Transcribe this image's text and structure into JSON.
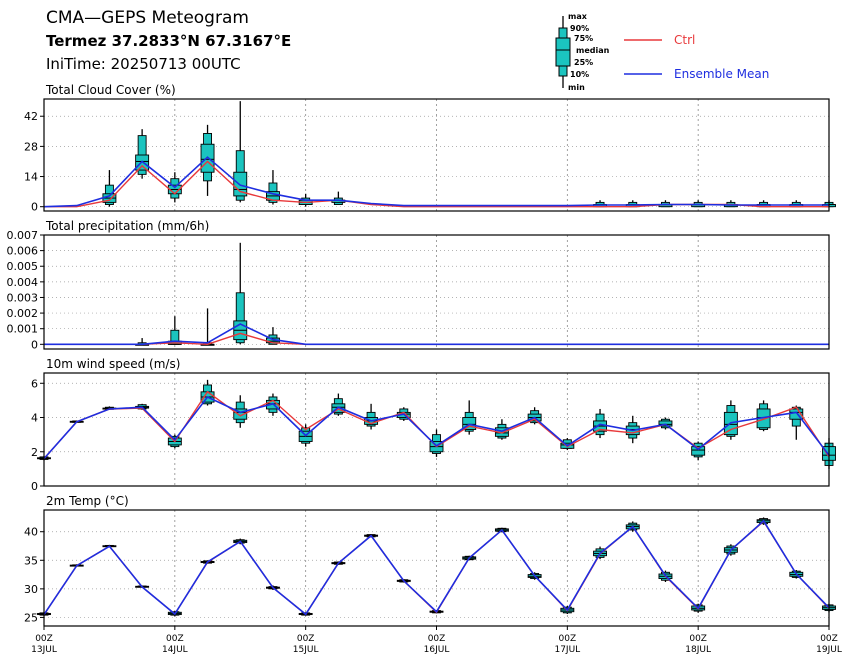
{
  "header": {
    "title": "CMA—GEPS Meteogram",
    "location": "Termez 37.2833°N 67.3167°E",
    "init_time": "IniTime: 20250713 00UTC"
  },
  "legend": {
    "box_labels": [
      "max",
      "90%",
      "75%",
      "median",
      "25%",
      "10%",
      "min"
    ],
    "ctrl_label": "Ctrl",
    "mean_label": "Ensemble Mean",
    "colors": {
      "ctrl": "#e8393b",
      "mean": "#1e2ee0",
      "box": "#1bc4bf"
    }
  },
  "x_axis": {
    "ticks": [
      {
        "t": 0,
        "hour": "00Z",
        "day": "13JUL"
      },
      {
        "t": 24,
        "hour": "00Z",
        "day": "14JUL"
      },
      {
        "t": 48,
        "hour": "00Z",
        "day": "15JUL"
      },
      {
        "t": 72,
        "hour": "00Z",
        "day": "16JUL"
      },
      {
        "t": 96,
        "hour": "00Z",
        "day": "17JUL"
      },
      {
        "t": 120,
        "hour": "00Z",
        "day": "18JUL"
      },
      {
        "t": 144,
        "hour": "00Z",
        "day": "19JUL"
      }
    ],
    "range": [
      0,
      144
    ]
  },
  "chart_data": [
    {
      "type": "box",
      "title": "Total Cloud Cover (%)",
      "ylim": [
        -2,
        50
      ],
      "yticks": [
        "0",
        "14",
        "28",
        "42"
      ],
      "ytick_values": [
        0,
        14,
        28,
        42
      ],
      "t": [
        0,
        6,
        12,
        18,
        24,
        30,
        36,
        42,
        48,
        54,
        60,
        66,
        72,
        78,
        84,
        90,
        96,
        102,
        108,
        114,
        120,
        126,
        132,
        138,
        144
      ],
      "boxes": [
        null,
        null,
        [
          0,
          1,
          2,
          4,
          6,
          10,
          17
        ],
        [
          13,
          15,
          17,
          21,
          24,
          33,
          36
        ],
        [
          2,
          4,
          6,
          8,
          10,
          13,
          16
        ],
        [
          5,
          12,
          16,
          22,
          29,
          34,
          38
        ],
        [
          2,
          3,
          5,
          8,
          16,
          26,
          49
        ],
        [
          1,
          2,
          3,
          5,
          7,
          11,
          17
        ],
        [
          0,
          1,
          1,
          2,
          3,
          4,
          6
        ],
        [
          1,
          1,
          2,
          3,
          3,
          4,
          7
        ],
        null,
        null,
        null,
        null,
        null,
        null,
        null,
        [
          0,
          0,
          0,
          1,
          1,
          2,
          3
        ],
        [
          0,
          0,
          0,
          1,
          1,
          2,
          3
        ],
        [
          0,
          0,
          0,
          1,
          1,
          2,
          3
        ],
        [
          0,
          0,
          0,
          1,
          1,
          2,
          3
        ],
        [
          0,
          0,
          0,
          1,
          1,
          2,
          3
        ],
        [
          0,
          0,
          0,
          1,
          1,
          2,
          3
        ],
        [
          0,
          0,
          0,
          1,
          1,
          2,
          3
        ],
        [
          0,
          0,
          0,
          1,
          1,
          2,
          3
        ]
      ],
      "ctrl": [
        0,
        0,
        3,
        19,
        6,
        21,
        7,
        3,
        2,
        3,
        1,
        0,
        0,
        0,
        0,
        0,
        0,
        0,
        0,
        1,
        1,
        1,
        0,
        0,
        0
      ],
      "mean": [
        0,
        0.5,
        5,
        21,
        9,
        23,
        10,
        6,
        3,
        3,
        1.5,
        0.5,
        0.5,
        0.5,
        0.5,
        0.5,
        0.5,
        0.8,
        0.8,
        1,
        1,
        0.8,
        0.8,
        0.8,
        0.8
      ]
    },
    {
      "type": "box",
      "title": "Total precipitation (mm/6h)",
      "ylim": [
        -0.0003,
        0.007
      ],
      "yticks": [
        "0",
        "0.001",
        "0.002",
        "0.003",
        "0.004",
        "0.005",
        "0.006",
        "0.007"
      ],
      "ytick_values": [
        0,
        0.001,
        0.002,
        0.003,
        0.004,
        0.005,
        0.006,
        0.007
      ],
      "t": [
        0,
        6,
        12,
        18,
        24,
        30,
        36,
        42,
        48,
        54,
        60,
        66,
        72,
        78,
        84,
        90,
        96,
        102,
        108,
        114,
        120,
        126,
        132,
        138,
        144
      ],
      "boxes": [
        null,
        null,
        null,
        [
          0,
          0,
          0,
          0,
          0,
          0.0001,
          0.0004
        ],
        [
          0,
          0,
          0,
          0,
          0.0002,
          0.0009,
          0.0018
        ],
        [
          0,
          0,
          0,
          0,
          0,
          0.0001,
          0.0023
        ],
        [
          0,
          0.0001,
          0.0003,
          0.0009,
          0.0015,
          0.0033,
          0.0065
        ],
        [
          0,
          0,
          0.0001,
          0.0002,
          0.0004,
          0.0006,
          0.0011
        ],
        null,
        null,
        null,
        null,
        null,
        null,
        null,
        null,
        null,
        null,
        null,
        null,
        null,
        null,
        null,
        null,
        null
      ],
      "ctrl": [
        0,
        0,
        0,
        0,
        0.0001,
        0,
        0.0007,
        0.0001,
        0,
        0,
        0,
        0,
        0,
        0,
        0,
        0,
        0,
        0,
        0,
        0,
        0,
        0,
        0,
        0,
        0
      ],
      "mean": [
        0,
        0,
        0,
        0,
        0.0002,
        0.0001,
        0.0013,
        0.0003,
        0,
        0,
        0,
        0,
        0,
        0,
        0,
        0,
        0,
        0,
        0,
        0,
        0,
        0,
        0,
        0,
        0
      ]
    },
    {
      "type": "box",
      "title": "10m wind speed (m/s)",
      "ylim": [
        0,
        6.6
      ],
      "yticks": [
        "0",
        "2",
        "4",
        "6"
      ],
      "ytick_values": [
        0,
        2,
        4,
        6
      ],
      "t": [
        0,
        6,
        12,
        18,
        24,
        30,
        36,
        42,
        48,
        54,
        60,
        66,
        72,
        78,
        84,
        90,
        96,
        102,
        108,
        114,
        120,
        126,
        132,
        138,
        144
      ],
      "boxes": [
        [
          1.5,
          1.55,
          1.6,
          1.62,
          1.65,
          1.7,
          1.75
        ],
        [
          3.7,
          3.72,
          3.74,
          3.76,
          3.78,
          3.8,
          3.82
        ],
        [
          4.45,
          4.48,
          4.5,
          4.53,
          4.55,
          4.6,
          4.65
        ],
        [
          4.45,
          4.5,
          4.55,
          4.6,
          4.65,
          4.75,
          4.8
        ],
        [
          2.2,
          2.3,
          2.4,
          2.6,
          2.8,
          2.9,
          3.0
        ],
        [
          4.7,
          4.8,
          4.9,
          5.2,
          5.5,
          5.9,
          6.2
        ],
        [
          3.4,
          3.7,
          3.9,
          4.3,
          4.5,
          4.9,
          5.3
        ],
        [
          4.1,
          4.3,
          4.5,
          4.8,
          5.0,
          5.2,
          5.4
        ],
        [
          2.3,
          2.5,
          2.6,
          2.9,
          3.2,
          3.4,
          3.6
        ],
        [
          4.1,
          4.2,
          4.3,
          4.6,
          4.8,
          5.1,
          5.4
        ],
        [
          3.3,
          3.5,
          3.6,
          3.8,
          4.0,
          4.3,
          4.8
        ],
        [
          3.8,
          3.9,
          4.0,
          4.2,
          4.3,
          4.5,
          4.6
        ],
        [
          1.7,
          1.9,
          2.0,
          2.3,
          2.6,
          3.0,
          3.3
        ],
        [
          3.0,
          3.2,
          3.3,
          3.6,
          4.0,
          4.3,
          5.0
        ],
        [
          2.7,
          2.8,
          2.9,
          3.1,
          3.4,
          3.6,
          3.9
        ],
        [
          3.6,
          3.7,
          3.8,
          4.0,
          4.2,
          4.4,
          4.6
        ],
        [
          2.1,
          2.2,
          2.2,
          2.4,
          2.5,
          2.7,
          2.8
        ],
        [
          2.8,
          3.0,
          3.2,
          3.5,
          3.8,
          4.2,
          4.5
        ],
        [
          2.5,
          2.8,
          3.0,
          3.3,
          3.5,
          3.7,
          4.1
        ],
        [
          3.3,
          3.4,
          3.5,
          3.6,
          3.8,
          3.9,
          4.0
        ],
        [
          1.5,
          1.7,
          1.8,
          2.1,
          2.3,
          2.5,
          2.6
        ],
        [
          2.7,
          2.9,
          3.0,
          3.6,
          4.3,
          4.7,
          5.0
        ],
        [
          3.2,
          3.3,
          3.4,
          4.0,
          4.5,
          4.8,
          5.0
        ],
        [
          2.7,
          3.5,
          3.9,
          4.3,
          4.5,
          4.6,
          4.7
        ],
        [
          1.0,
          1.2,
          1.5,
          1.8,
          2.3,
          2.5,
          2.8
        ]
      ],
      "ctrl": [
        1.6,
        3.75,
        4.5,
        4.55,
        2.6,
        5.5,
        4.1,
        5.0,
        3.3,
        4.5,
        3.65,
        4.3,
        2.3,
        3.5,
        3.1,
        3.9,
        2.3,
        3.3,
        3.1,
        3.6,
        2.2,
        3.3,
        3.9,
        4.6,
        1.7
      ],
      "mean": [
        1.6,
        3.75,
        4.5,
        4.6,
        2.7,
        5.2,
        4.3,
        4.8,
        2.95,
        4.6,
        3.8,
        4.2,
        2.35,
        3.6,
        3.2,
        4.0,
        2.35,
        3.6,
        3.25,
        3.6,
        2.15,
        3.7,
        4.0,
        4.3,
        1.8
      ]
    },
    {
      "type": "box",
      "title": "2m Temp (°C)",
      "ylim": [
        23.5,
        43.8
      ],
      "yticks": [
        "25",
        "30",
        "35",
        "40"
      ],
      "ytick_values": [
        25,
        30,
        35,
        40
      ],
      "t": [
        0,
        6,
        12,
        18,
        24,
        30,
        36,
        42,
        48,
        54,
        60,
        66,
        72,
        78,
        84,
        90,
        96,
        102,
        108,
        114,
        120,
        126,
        132,
        138,
        144
      ],
      "boxes": [
        [
          25.3,
          25.4,
          25.5,
          25.6,
          25.7,
          25.8,
          25.9
        ],
        [
          33.9,
          34.0,
          34.05,
          34.1,
          34.15,
          34.2,
          34.3
        ],
        [
          37.3,
          37.4,
          37.45,
          37.5,
          37.55,
          37.6,
          37.7
        ],
        [
          30.2,
          30.3,
          30.35,
          30.4,
          30.45,
          30.5,
          30.6
        ],
        [
          25.2,
          25.4,
          25.5,
          25.7,
          25.9,
          26.0,
          26.1
        ],
        [
          34.4,
          34.5,
          34.6,
          34.7,
          34.8,
          34.9,
          35.0
        ],
        [
          37.8,
          38.0,
          38.1,
          38.3,
          38.5,
          38.6,
          38.8
        ],
        [
          29.8,
          30.0,
          30.1,
          30.2,
          30.3,
          30.4,
          30.6
        ],
        [
          25.3,
          25.4,
          25.5,
          25.6,
          25.7,
          25.8,
          25.9
        ],
        [
          34.2,
          34.3,
          34.4,
          34.5,
          34.6,
          34.7,
          34.8
        ],
        [
          39.0,
          39.1,
          39.2,
          39.3,
          39.4,
          39.5,
          39.6
        ],
        [
          31.1,
          31.2,
          31.3,
          31.4,
          31.5,
          31.6,
          31.7
        ],
        [
          25.7,
          25.8,
          25.9,
          26.0,
          26.1,
          26.2,
          26.3
        ],
        [
          35.0,
          35.1,
          35.2,
          35.4,
          35.6,
          35.7,
          35.8
        ],
        [
          39.9,
          40.0,
          40.1,
          40.3,
          40.5,
          40.6,
          40.7
        ],
        [
          31.6,
          31.8,
          32.0,
          32.2,
          32.5,
          32.7,
          32.9
        ],
        [
          25.6,
          25.8,
          26.0,
          26.3,
          26.6,
          26.8,
          27.0
        ],
        [
          35.2,
          35.5,
          35.8,
          36.2,
          36.6,
          37.0,
          37.4
        ],
        [
          40.0,
          40.3,
          40.5,
          40.9,
          41.2,
          41.5,
          41.8
        ],
        [
          31.2,
          31.5,
          31.8,
          32.2,
          32.6,
          32.9,
          33.2
        ],
        [
          25.8,
          26.1,
          26.3,
          26.6,
          27.0,
          27.2,
          27.4
        ],
        [
          35.8,
          36.1,
          36.4,
          36.8,
          37.2,
          37.5,
          37.8
        ],
        [
          41.2,
          41.4,
          41.6,
          41.9,
          42.1,
          42.3,
          42.5
        ],
        [
          31.8,
          32.0,
          32.2,
          32.5,
          32.9,
          33.1,
          33.3
        ],
        [
          25.9,
          26.2,
          26.4,
          26.7,
          27.0,
          27.2,
          27.4
        ]
      ],
      "ctrl": [
        25.5,
        34.05,
        37.45,
        30.35,
        25.6,
        34.65,
        38.3,
        30.2,
        25.55,
        34.5,
        39.3,
        31.4,
        25.9,
        35.4,
        40.3,
        32.3,
        26.2,
        36.1,
        40.9,
        32.2,
        26.5,
        36.8,
        41.8,
        32.6,
        26.6
      ],
      "mean": [
        25.5,
        34.05,
        37.45,
        30.35,
        25.6,
        34.7,
        38.3,
        30.2,
        25.55,
        34.5,
        39.3,
        31.4,
        26.0,
        35.4,
        40.3,
        32.3,
        26.3,
        36.2,
        40.9,
        32.3,
        26.6,
        36.8,
        41.9,
        32.6,
        26.7
      ]
    }
  ]
}
